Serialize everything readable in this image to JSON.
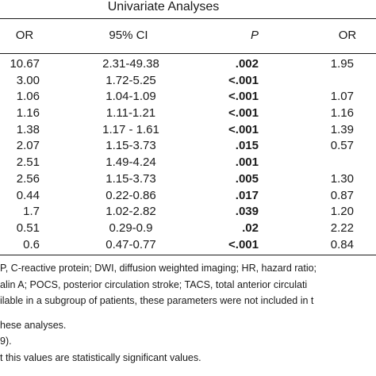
{
  "table": {
    "group_header": "Univariate Analyses",
    "columns": {
      "or": "OR",
      "ci": "95% CI",
      "p": "P",
      "or2": "OR"
    },
    "rows": [
      {
        "or": "10.67",
        "ci": "2.31-49.38",
        "p": ".002",
        "or2": "1.95"
      },
      {
        "or": "3.00",
        "ci": "1.72-5.25",
        "p": "<.001",
        "or2": ""
      },
      {
        "or": "1.06",
        "ci": "1.04-1.09",
        "p": "<.001",
        "or2": "1.07"
      },
      {
        "or": "1.16",
        "ci": "1.11-1.21",
        "p": "<.001",
        "or2": "1.16"
      },
      {
        "or": "1.38",
        "ci": "1.17 - 1.61",
        "p": "<.001",
        "or2": "1.39"
      },
      {
        "or": "2.07",
        "ci": "1.15-3.73",
        "p": ".015",
        "or2": "0.57"
      },
      {
        "or": "2.51",
        "ci": "1.49-4.24",
        "p": ".001",
        "or2": ""
      },
      {
        "or": "2.56",
        "ci": "1.15-3.73",
        "p": ".005",
        "or2": "1.30"
      },
      {
        "or": "0.44",
        "ci": "0.22-0.86",
        "p": ".017",
        "or2": "0.87"
      },
      {
        "or": "1.7",
        "ci": "1.02-2.82",
        "p": ".039",
        "or2": "1.20"
      },
      {
        "or": "0.51",
        "ci": "0.29-0.9",
        "p": ".02",
        "or2": "2.22"
      },
      {
        "or": "0.6",
        "ci": "0.47-0.77",
        "p": "<.001",
        "or2": "0.84"
      }
    ]
  },
  "footnotes": [
    "P, C-reactive protein; DWI, diffusion weighted imaging; HR, hazard ratio;",
    "alin A; POCS, posterior circulation stroke; TACS, total anterior circulati",
    "ilable in a subgroup of patients, these parameters were not included in t",
    "hese analyses.",
    "9).",
    "t this values are statistically significant values."
  ]
}
